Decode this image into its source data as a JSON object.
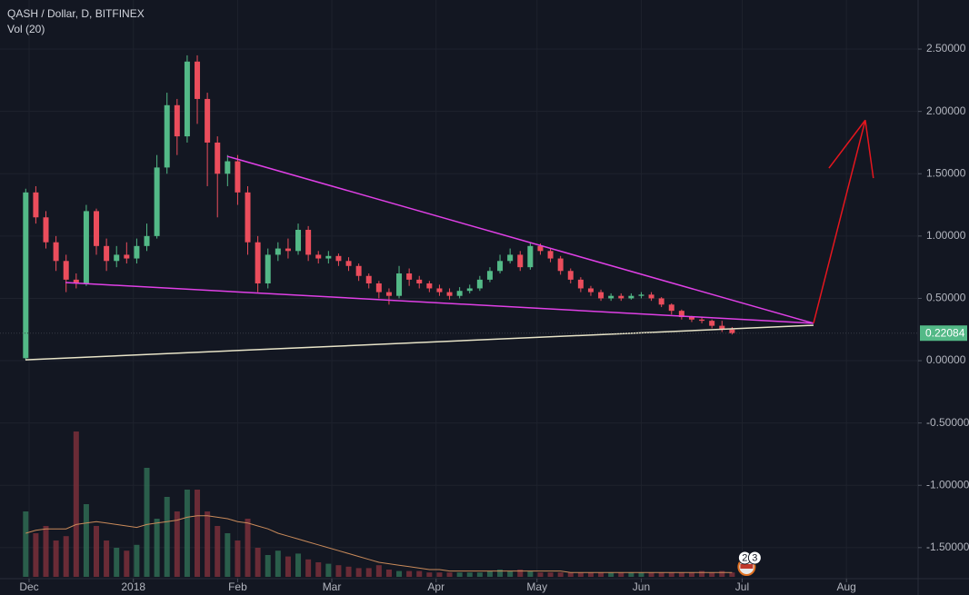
{
  "chart_data": {
    "type": "candlestick",
    "title": "QASH / Dollar, D, BITFINEX",
    "subtitle": "Vol (20)",
    "x": [
      -1,
      2,
      5,
      8,
      11,
      14,
      17,
      20,
      23,
      26,
      29,
      32,
      35,
      38,
      41,
      44,
      47,
      50,
      53,
      56,
      59,
      62,
      65,
      68,
      71,
      74,
      77,
      80,
      83,
      86,
      89,
      92,
      95,
      98,
      101,
      104,
      107,
      110,
      113,
      116,
      119,
      122,
      125,
      128,
      131,
      134,
      137,
      140,
      143,
      146,
      149,
      152,
      155,
      158,
      161,
      164,
      167,
      170,
      173,
      176,
      179,
      182,
      185,
      188,
      191,
      194,
      197,
      200,
      203,
      206,
      209
    ],
    "open": [
      0.02,
      1.35,
      1.15,
      0.95,
      0.8,
      0.65,
      0.62,
      1.2,
      0.92,
      0.8,
      0.85,
      0.82,
      0.92,
      1.0,
      1.55,
      2.05,
      1.8,
      2.4,
      2.1,
      1.75,
      1.5,
      1.6,
      1.35,
      0.95,
      0.62,
      0.85,
      0.9,
      0.88,
      1.05,
      0.85,
      0.82,
      0.84,
      0.8,
      0.76,
      0.68,
      0.62,
      0.55,
      0.52,
      0.7,
      0.65,
      0.62,
      0.58,
      0.55,
      0.52,
      0.56,
      0.58,
      0.65,
      0.72,
      0.8,
      0.85,
      0.75,
      0.92,
      0.88,
      0.82,
      0.72,
      0.65,
      0.58,
      0.55,
      0.5,
      0.52,
      0.5,
      0.52,
      0.53,
      0.5,
      0.45,
      0.4,
      0.35,
      0.33,
      0.32,
      0.28,
      0.25
    ],
    "high": [
      1.38,
      1.4,
      1.2,
      1.0,
      0.85,
      0.7,
      1.25,
      1.22,
      0.98,
      0.92,
      0.95,
      0.98,
      1.1,
      1.65,
      2.15,
      2.1,
      2.45,
      2.45,
      2.15,
      1.8,
      1.65,
      1.65,
      1.4,
      1.0,
      0.9,
      0.95,
      0.98,
      1.1,
      1.08,
      0.88,
      0.88,
      0.86,
      0.83,
      0.78,
      0.7,
      0.64,
      0.58,
      0.76,
      0.74,
      0.68,
      0.64,
      0.61,
      0.58,
      0.59,
      0.61,
      0.68,
      0.75,
      0.85,
      0.9,
      0.88,
      0.95,
      0.94,
      0.9,
      0.84,
      0.74,
      0.67,
      0.6,
      0.57,
      0.54,
      0.54,
      0.54,
      0.55,
      0.55,
      0.51,
      0.46,
      0.41,
      0.36,
      0.35,
      0.33,
      0.32,
      0.27
    ],
    "low": [
      0.01,
      1.1,
      0.9,
      0.72,
      0.55,
      0.58,
      0.6,
      0.85,
      0.72,
      0.75,
      0.78,
      0.78,
      0.88,
      0.98,
      1.5,
      1.65,
      1.75,
      1.9,
      1.4,
      1.15,
      1.4,
      1.25,
      0.85,
      0.55,
      0.58,
      0.8,
      0.82,
      0.85,
      0.8,
      0.78,
      0.78,
      0.76,
      0.72,
      0.64,
      0.58,
      0.5,
      0.45,
      0.5,
      0.6,
      0.58,
      0.55,
      0.52,
      0.49,
      0.5,
      0.54,
      0.56,
      0.63,
      0.7,
      0.78,
      0.72,
      0.73,
      0.85,
      0.79,
      0.69,
      0.62,
      0.55,
      0.52,
      0.48,
      0.48,
      0.48,
      0.49,
      0.5,
      0.48,
      0.43,
      0.37,
      0.33,
      0.31,
      0.3,
      0.26,
      0.23,
      0.21
    ],
    "close": [
      1.35,
      1.15,
      0.95,
      0.8,
      0.65,
      0.62,
      1.2,
      0.92,
      0.8,
      0.85,
      0.82,
      0.92,
      1.0,
      1.55,
      2.05,
      1.8,
      2.4,
      2.1,
      1.75,
      1.5,
      1.6,
      1.35,
      0.95,
      0.62,
      0.85,
      0.9,
      0.88,
      1.05,
      0.85,
      0.82,
      0.84,
      0.8,
      0.76,
      0.68,
      0.62,
      0.55,
      0.52,
      0.7,
      0.65,
      0.62,
      0.58,
      0.55,
      0.52,
      0.56,
      0.58,
      0.65,
      0.72,
      0.8,
      0.85,
      0.75,
      0.92,
      0.88,
      0.82,
      0.72,
      0.65,
      0.58,
      0.55,
      0.5,
      0.52,
      0.5,
      0.52,
      0.53,
      0.5,
      0.45,
      0.4,
      0.35,
      0.33,
      0.32,
      0.28,
      0.25,
      0.22
    ],
    "volume": [
      45,
      30,
      35,
      25,
      28,
      100,
      50,
      35,
      25,
      20,
      18,
      22,
      75,
      40,
      55,
      45,
      60,
      60,
      45,
      35,
      30,
      25,
      40,
      20,
      15,
      18,
      14,
      16,
      12,
      10,
      9,
      8,
      7,
      6,
      6,
      8,
      5,
      4,
      4,
      4,
      3,
      3,
      3,
      3,
      3,
      3,
      4,
      5,
      4,
      5,
      4,
      3,
      3,
      3,
      3,
      3,
      3,
      3,
      3,
      3,
      3,
      3,
      3,
      3,
      3,
      3,
      3,
      4,
      3,
      4,
      3
    ],
    "volume_ma": [
      30,
      32,
      33,
      33,
      33,
      36,
      37,
      38,
      37,
      36,
      35,
      34,
      36,
      37,
      38,
      39,
      41,
      42,
      42,
      41,
      40,
      38,
      37,
      35,
      33,
      30,
      28,
      26,
      24,
      22,
      20,
      18,
      16,
      14,
      12,
      10,
      9,
      8,
      7,
      6,
      5,
      5,
      4,
      4,
      4,
      4,
      4,
      4,
      4,
      4,
      4,
      4,
      4,
      4,
      3,
      3,
      3,
      3,
      3,
      3,
      3,
      3,
      3,
      3,
      3,
      3,
      3,
      3,
      3,
      3,
      3
    ],
    "vlim": [
      0,
      100
    ],
    "xlim": [
      -8.65,
      264.3
    ],
    "xticks": [
      {
        "value": 0,
        "label": "Dec"
      },
      {
        "value": 31,
        "label": "2018"
      },
      {
        "value": 62,
        "label": "Feb"
      },
      {
        "value": 90,
        "label": "Mar"
      },
      {
        "value": 121,
        "label": "Apr"
      },
      {
        "value": 151,
        "label": "May"
      },
      {
        "value": 182,
        "label": "Jun"
      },
      {
        "value": 212,
        "label": "Jul"
      },
      {
        "value": 243,
        "label": "Aug"
      }
    ],
    "ylim": [
      -1.749,
      2.894
    ],
    "yticks": [
      {
        "value": 2.5,
        "label": "2.50000"
      },
      {
        "value": 2,
        "label": "2.00000"
      },
      {
        "value": 1.5,
        "label": "1.50000"
      },
      {
        "value": 1,
        "label": "1.00000"
      },
      {
        "value": 0.5,
        "label": "0.50000"
      },
      {
        "value": 0,
        "label": "0.00000"
      },
      {
        "value": -0.5,
        "label": "-0.50000"
      },
      {
        "value": -1,
        "label": "-1.00000"
      },
      {
        "value": -1.5,
        "label": "-1.50000"
      }
    ],
    "last_price": {
      "value": 0.22084,
      "label": "0.22084"
    },
    "grid": true,
    "colors": {
      "up": "#53b987",
      "down": "#eb4d5c",
      "up_volume": "#2f6b52",
      "down_volume": "#7a2f3a",
      "volume_ma": "#c98a5a"
    },
    "drawings": [
      {
        "color": "#e040e6",
        "points": [
          [
            58.9,
            1.64
          ],
          [
            233.2,
            0.3
          ]
        ]
      },
      {
        "color": "#e040e6",
        "points": [
          [
            10.8,
            0.627
          ],
          [
            233.2,
            0.3
          ]
        ]
      },
      {
        "color": "#e8e4c8",
        "points": [
          [
            -1.1,
            0.007
          ],
          [
            233.2,
            0.284
          ]
        ]
      },
      {
        "color": "#e5161e",
        "points": [
          [
            233.2,
            0.3
          ],
          [
            248.6,
            1.93
          ],
          [
            251,
            1.465
          ]
        ]
      },
      {
        "color": "#e5161e",
        "points": [
          [
            237.8,
            1.545
          ],
          [
            248.6,
            1.93
          ]
        ]
      }
    ],
    "badges": [
      "2",
      "3"
    ]
  }
}
